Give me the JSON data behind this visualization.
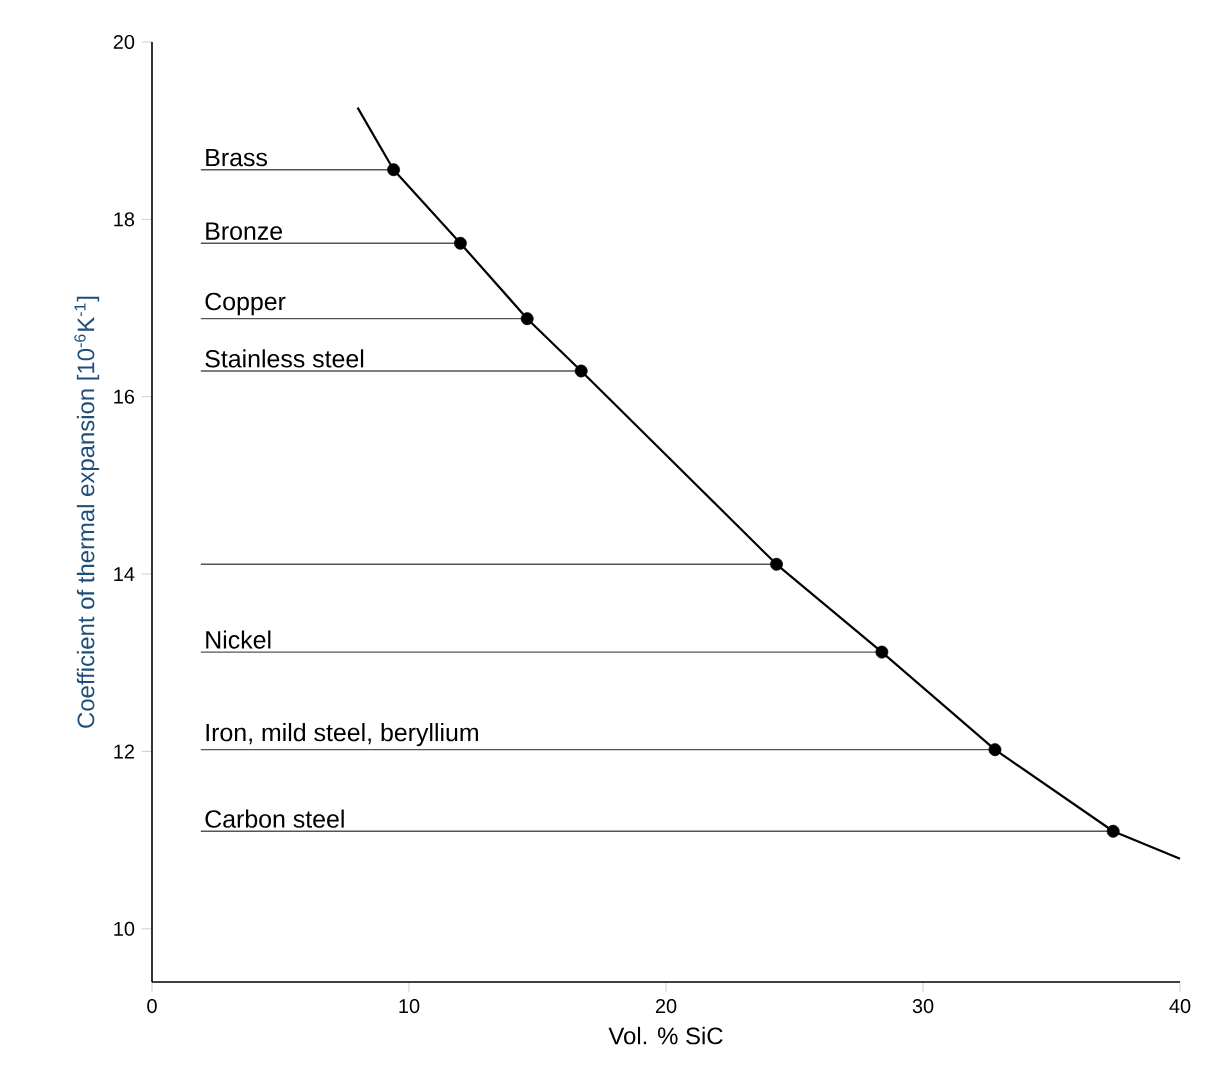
{
  "chart_data": {
    "type": "line",
    "xlabel": "Vol. % SiC",
    "ylabel": "Coefficient of thermal expansion [10$^{-6}$K$^{-1}$]",
    "xlim": [
      0,
      40
    ],
    "ylim": [
      9.4,
      20
    ],
    "xticks": [
      0,
      10,
      20,
      30,
      40
    ],
    "yticks": [
      10,
      12,
      14,
      16,
      18,
      20
    ],
    "grid": false,
    "line_style": "solid",
    "series": [
      {
        "color": "#000000",
        "x": [
          8.0,
          9.4,
          12.0,
          14.6,
          16.7,
          24.3,
          28.4,
          32.8,
          37.4,
          40.0
        ],
        "values": [
          19.26,
          18.56,
          17.73,
          16.88,
          16.29,
          14.11,
          13.12,
          12.02,
          11.1,
          10.79
        ]
      },
      {
        "type": "scatter",
        "marker": "circle",
        "color": "#000000",
        "x": [
          9.4,
          12.0,
          14.6,
          16.7,
          24.3,
          28.4,
          32.8,
          37.4
        ],
        "values": [
          18.56,
          17.73,
          16.88,
          16.29,
          14.11,
          13.12,
          12.02,
          11.1
        ]
      },
      {
        "name": "Brass",
        "color": "#555555",
        "x": [
          1.9,
          9.4
        ],
        "values": [
          18.56,
          18.56
        ]
      },
      {
        "name": "Bronze",
        "color": "#555555",
        "x": [
          1.9,
          12.0
        ],
        "values": [
          17.73,
          17.73
        ]
      },
      {
        "name": "Copper",
        "color": "#555555",
        "x": [
          1.9,
          14.6
        ],
        "values": [
          16.88,
          16.88
        ]
      },
      {
        "name": "Stainless steel",
        "color": "#555555",
        "x": [
          1.9,
          16.7
        ],
        "values": [
          16.29,
          16.29
        ]
      },
      {
        "color": "#555555",
        "x": [
          1.9,
          24.3
        ],
        "values": [
          14.11,
          14.11
        ]
      },
      {
        "name": "Nickel",
        "color": "#555555",
        "x": [
          1.9,
          28.4
        ],
        "values": [
          13.12,
          13.12
        ]
      },
      {
        "name": "Iron, mild steel, beryllium",
        "color": "#555555",
        "x": [
          1.9,
          32.8
        ],
        "values": [
          12.02,
          12.02
        ]
      },
      {
        "name": "Carbon steel",
        "color": "#555555",
        "x": [
          1.9,
          37.4
        ],
        "values": [
          11.1,
          11.1
        ]
      }
    ]
  }
}
